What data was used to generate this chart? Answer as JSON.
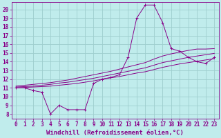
{
  "title": "",
  "xlabel": "Windchill (Refroidissement éolien,°C)",
  "background_color": "#c0ecec",
  "grid_color": "#9ecece",
  "line_color": "#880088",
  "xlim": [
    -0.5,
    23.5
  ],
  "ylim": [
    7.5,
    20.8
  ],
  "yticks": [
    8,
    9,
    10,
    11,
    12,
    13,
    14,
    15,
    16,
    17,
    18,
    19,
    20
  ],
  "xticks": [
    0,
    1,
    2,
    3,
    4,
    5,
    6,
    7,
    8,
    9,
    10,
    11,
    12,
    13,
    14,
    15,
    16,
    17,
    18,
    19,
    20,
    21,
    22,
    23
  ],
  "series_main": {
    "x": [
      0,
      1,
      2,
      3,
      4,
      5,
      6,
      7,
      8,
      9,
      10,
      11,
      12,
      13,
      14,
      15,
      16,
      17,
      18,
      19,
      20,
      21,
      22,
      23
    ],
    "y": [
      11.0,
      11.0,
      10.7,
      10.5,
      8.0,
      9.0,
      8.5,
      8.5,
      8.5,
      11.5,
      12.0,
      12.2,
      12.5,
      14.5,
      19.0,
      20.5,
      20.5,
      18.5,
      15.5,
      15.2,
      14.5,
      14.0,
      13.8,
      14.5
    ]
  },
  "series_lines": [
    [
      11.0,
      11.05,
      11.1,
      11.15,
      11.2,
      11.3,
      11.4,
      11.5,
      11.65,
      11.8,
      12.0,
      12.15,
      12.3,
      12.5,
      12.7,
      12.85,
      13.1,
      13.35,
      13.55,
      13.75,
      13.9,
      14.05,
      14.2,
      14.35
    ],
    [
      11.1,
      11.15,
      11.2,
      11.3,
      11.4,
      11.55,
      11.65,
      11.8,
      11.95,
      12.1,
      12.3,
      12.5,
      12.7,
      12.9,
      13.1,
      13.3,
      13.6,
      13.9,
      14.1,
      14.3,
      14.5,
      14.65,
      14.8,
      14.95
    ],
    [
      11.2,
      11.3,
      11.4,
      11.5,
      11.6,
      11.75,
      11.9,
      12.1,
      12.3,
      12.5,
      12.7,
      12.9,
      13.15,
      13.4,
      13.65,
      13.9,
      14.3,
      14.65,
      14.9,
      15.1,
      15.3,
      15.45,
      15.45,
      15.5
    ]
  ],
  "font_size": 6,
  "tick_font_size": 5.5,
  "xlabel_fontsize": 6.5
}
